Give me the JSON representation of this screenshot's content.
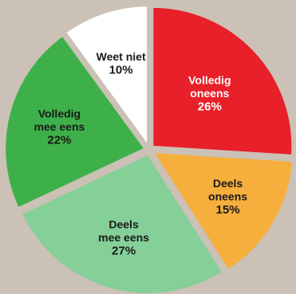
{
  "chart_data": {
    "type": "pie",
    "exploded": true,
    "start_angle_deg": 0,
    "direction": "clockwise",
    "slices": [
      {
        "label_lines": [
          "Volledig",
          "oneens"
        ],
        "value": 26,
        "value_label": "26%",
        "color": "#e8202a",
        "text_color": "#ffffff"
      },
      {
        "label_lines": [
          "Deels",
          "oneens"
        ],
        "value": 15,
        "value_label": "15%",
        "color": "#f6ae3d",
        "text_color": "#1a1a1a"
      },
      {
        "label_lines": [
          "Deels",
          "mee eens"
        ],
        "value": 27,
        "value_label": "27%",
        "color": "#85cf98",
        "text_color": "#1a1a1a"
      },
      {
        "label_lines": [
          "Volledig",
          "mee eens"
        ],
        "value": 22,
        "value_label": "22%",
        "color": "#3eb049",
        "text_color": "#1a1a1a"
      },
      {
        "label_lines": [
          "Weet niet"
        ],
        "value": 10,
        "value_label": "10%",
        "color": "#ffffff",
        "text_color": "#1a1a1a"
      }
    ]
  },
  "colors": {
    "background": "#cbc1b6",
    "edge": "#cbc1b6"
  }
}
